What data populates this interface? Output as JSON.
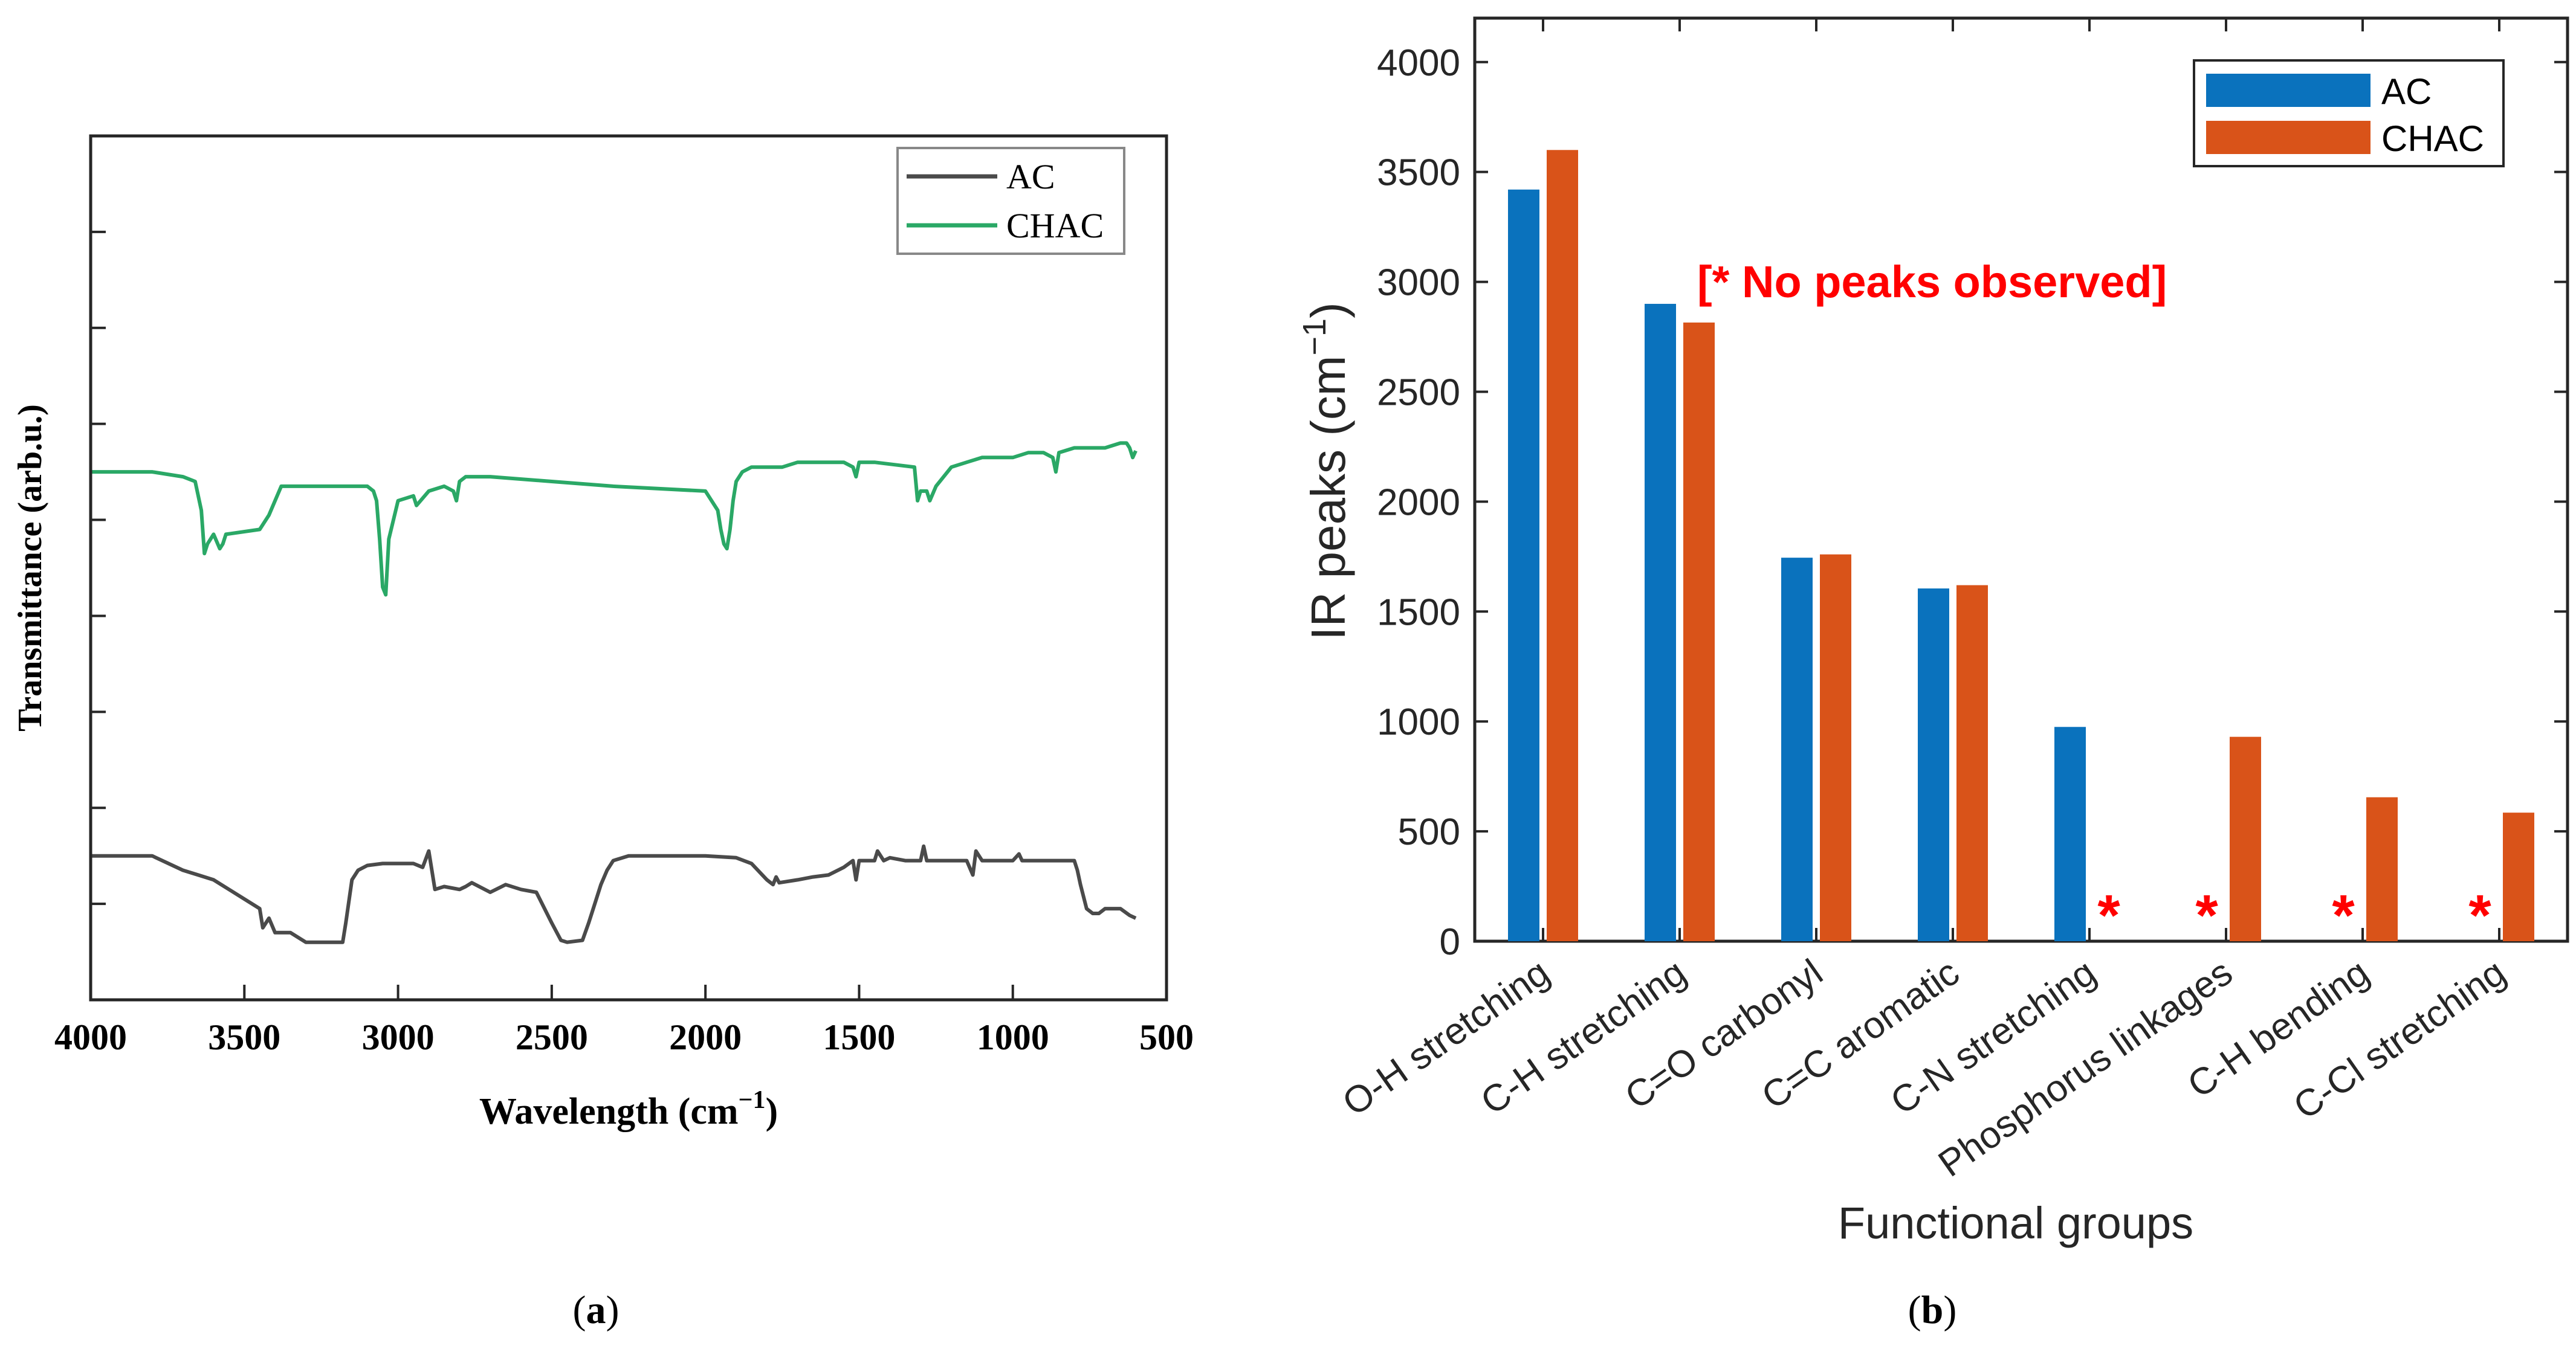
{
  "colors": {
    "ac_line": "#4a4a4a",
    "chac_line": "#2aa866",
    "ac_bar": "#0a72bd",
    "chac_bar": "#d95319",
    "note": "#ff0000",
    "axis": "#262626"
  },
  "chart_data": [
    {
      "id": "a",
      "type": "line",
      "panel_label": "(a)",
      "panel_letter": "a",
      "title": "",
      "xlabel": "Wavelength (cm",
      "xlabel_sup": "−1",
      "xlabel_close": ")",
      "ylabel": "Transmittance (arb.u.)",
      "xlim": [
        4000,
        500
      ],
      "ylim": [
        0,
        9
      ],
      "xticks": [
        4000,
        3500,
        3000,
        2500,
        2000,
        1500,
        1000,
        500
      ],
      "ytick_count": 9,
      "legend_position": "top-right",
      "series": [
        {
          "name": "AC",
          "color": "#4a4a4a",
          "x": [
            4000,
            3800,
            3700,
            3650,
            3600,
            3500,
            3450,
            3440,
            3420,
            3400,
            3350,
            3300,
            3250,
            3200,
            3180,
            3170,
            3150,
            3130,
            3100,
            3050,
            3000,
            2950,
            2920,
            2900,
            2890,
            2880,
            2850,
            2800,
            2780,
            2760,
            2700,
            2650,
            2600,
            2550,
            2500,
            2470,
            2450,
            2400,
            2380,
            2360,
            2340,
            2320,
            2300,
            2250,
            2200,
            2000,
            1900,
            1850,
            1800,
            1780,
            1770,
            1760,
            1700,
            1650,
            1600,
            1550,
            1520,
            1510,
            1500,
            1450,
            1440,
            1420,
            1400,
            1350,
            1300,
            1290,
            1280,
            1200,
            1150,
            1130,
            1120,
            1100,
            1000,
            980,
            970,
            960,
            900,
            850,
            800,
            790,
            780,
            760,
            740,
            720,
            700,
            650,
            620,
            600
          ],
          "y": [
            1.5,
            1.5,
            1.35,
            1.3,
            1.25,
            1.05,
            0.95,
            0.75,
            0.85,
            0.7,
            0.7,
            0.6,
            0.6,
            0.6,
            0.6,
            0.8,
            1.25,
            1.35,
            1.4,
            1.42,
            1.42,
            1.42,
            1.38,
            1.55,
            1.35,
            1.15,
            1.18,
            1.15,
            1.18,
            1.22,
            1.12,
            1.2,
            1.15,
            1.12,
            0.8,
            0.62,
            0.6,
            0.62,
            0.8,
            1.0,
            1.2,
            1.35,
            1.45,
            1.5,
            1.5,
            1.5,
            1.48,
            1.42,
            1.25,
            1.2,
            1.28,
            1.22,
            1.25,
            1.28,
            1.3,
            1.38,
            1.45,
            1.25,
            1.45,
            1.45,
            1.55,
            1.45,
            1.48,
            1.45,
            1.45,
            1.6,
            1.45,
            1.45,
            1.45,
            1.3,
            1.55,
            1.45,
            1.45,
            1.52,
            1.45,
            1.45,
            1.45,
            1.45,
            1.45,
            1.35,
            1.2,
            0.95,
            0.9,
            0.9,
            0.95,
            0.95,
            0.88,
            0.85
          ]
        },
        {
          "name": "CHAC",
          "color": "#2aa866",
          "x": [
            4000,
            3800,
            3700,
            3660,
            3640,
            3630,
            3620,
            3600,
            3580,
            3570,
            3560,
            3450,
            3420,
            3400,
            3380,
            3100,
            3080,
            3070,
            3060,
            3050,
            3040,
            3030,
            3000,
            2950,
            2940,
            2900,
            2850,
            2820,
            2810,
            2800,
            2780,
            2700,
            2500,
            2300,
            2000,
            1960,
            1950,
            1940,
            1930,
            1920,
            1910,
            1900,
            1880,
            1850,
            1800,
            1750,
            1700,
            1600,
            1550,
            1520,
            1510,
            1500,
            1450,
            1320,
            1310,
            1300,
            1280,
            1270,
            1250,
            1200,
            1150,
            1100,
            1000,
            950,
            900,
            870,
            860,
            850,
            800,
            750,
            700,
            650,
            630,
            620,
            610,
            600
          ],
          "y": [
            5.5,
            5.5,
            5.45,
            5.4,
            5.1,
            4.65,
            4.75,
            4.85,
            4.7,
            4.75,
            4.85,
            4.9,
            5.05,
            5.2,
            5.35,
            5.35,
            5.3,
            5.2,
            4.8,
            4.3,
            4.22,
            4.8,
            5.2,
            5.25,
            5.15,
            5.3,
            5.35,
            5.3,
            5.2,
            5.4,
            5.45,
            5.45,
            5.4,
            5.35,
            5.3,
            5.1,
            4.9,
            4.75,
            4.7,
            4.9,
            5.2,
            5.4,
            5.5,
            5.55,
            5.55,
            5.55,
            5.6,
            5.6,
            5.6,
            5.55,
            5.45,
            5.6,
            5.6,
            5.55,
            5.2,
            5.3,
            5.3,
            5.2,
            5.35,
            5.55,
            5.6,
            5.65,
            5.65,
            5.7,
            5.7,
            5.65,
            5.5,
            5.7,
            5.75,
            5.75,
            5.75,
            5.8,
            5.8,
            5.75,
            5.65,
            5.72
          ]
        }
      ]
    },
    {
      "id": "b",
      "type": "bar",
      "panel_label": "(b)",
      "panel_letter": "b",
      "xlabel": "Functional groups",
      "ylabel": "IR  peaks  (cm",
      "ylabel_sup": "−1",
      "ylabel_close": ")",
      "ylim": [
        0,
        4200
      ],
      "yticks": [
        0,
        500,
        1000,
        1500,
        2000,
        2500,
        3000,
        3500,
        4000
      ],
      "legend_position": "top-right",
      "annotation": "[* No peaks observed]",
      "missing_marker": "*",
      "categories": [
        "O-H stretching",
        "C-H stretching",
        "C=O carbonyl",
        "C=C aromatic",
        "C-N stretching",
        "Phosphorus linkages",
        "C-H bending",
        "C-Cl stretching"
      ],
      "series": [
        {
          "name": "AC",
          "color": "#0a72bd",
          "values": [
            3420,
            2900,
            1745,
            1605,
            975,
            null,
            null,
            null
          ]
        },
        {
          "name": "CHAC",
          "color": "#d95319",
          "values": [
            3600,
            2815,
            1760,
            1620,
            null,
            930,
            655,
            585
          ]
        }
      ]
    }
  ]
}
